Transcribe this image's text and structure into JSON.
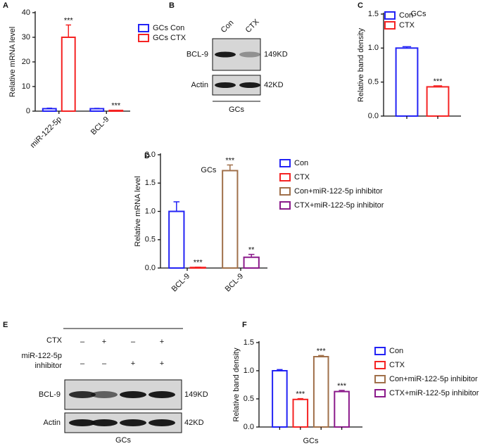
{
  "chart_data": [
    {
      "type": "bar",
      "panel": "A",
      "ylabel": "Relative mRNA level",
      "categories": [
        "miR-122-5p",
        "BCL-9"
      ],
      "series": [
        {
          "name": "GCs Con",
          "color": "#2323f5",
          "values": [
            1,
            1
          ],
          "errors": [
            0.2,
            0.15
          ]
        },
        {
          "name": "GCs CTX",
          "color": "#f52323",
          "values": [
            30,
            0.3
          ],
          "errors": [
            5,
            0.05
          ],
          "significance": [
            "***",
            "***"
          ]
        }
      ],
      "ylim": [
        0,
        40
      ],
      "yticks": [
        0,
        10,
        20,
        30,
        40
      ],
      "legend": "upper right"
    },
    {
      "type": "bar",
      "panel": "C",
      "title": "GCs",
      "ylabel": "Relative band density",
      "categories": [
        null
      ],
      "series": [
        {
          "name": "Con",
          "color": "#2323f5",
          "values": [
            1.0
          ],
          "errors": [
            0.02
          ]
        },
        {
          "name": "CTX",
          "color": "#f52323",
          "values": [
            0.43
          ],
          "errors": [
            0.015
          ],
          "significance": [
            "***"
          ]
        }
      ],
      "ylim": [
        0,
        1.5
      ],
      "yticks": [
        {
          "value": 0,
          "label": "0.0"
        },
        0.5,
        {
          "value": 1,
          "label": "1.0"
        },
        1.5
      ],
      "legend": "upper left"
    },
    {
      "type": "bar",
      "panel": "D",
      "title": "GCs",
      "ylabel": "Relative mRNA level",
      "categories": [
        "BCL-9",
        "BCL-9"
      ],
      "series": [
        {
          "name": "Con",
          "color": "#2323f5",
          "values": [
            1.0,
            null
          ],
          "errors": [
            0.17,
            null
          ]
        },
        {
          "name": "CTX",
          "color": "#f52323",
          "values": [
            0.01,
            null
          ],
          "errors": [
            0.005,
            null
          ],
          "significance": [
            "***",
            null
          ]
        },
        {
          "name": "Con+miR-122-5p inhibitor",
          "color": "#a0704a",
          "values": [
            null,
            1.72
          ],
          "errors": [
            null,
            0.1
          ],
          "significance": [
            null,
            "***"
          ]
        },
        {
          "name": "CTX+miR-122-5p inhibitor",
          "color": "#8b1a8b",
          "values": [
            null,
            0.19
          ],
          "errors": [
            null,
            0.05
          ],
          "significance": [
            null,
            "**"
          ]
        }
      ],
      "ylim": [
        0,
        2
      ],
      "yticks": [
        {
          "value": 0,
          "label": "0.0"
        },
        0.5,
        {
          "value": 1,
          "label": "1.0"
        },
        1.5,
        {
          "value": 2,
          "label": "2.0"
        }
      ],
      "legend": "right"
    },
    {
      "type": "bar",
      "panel": "F",
      "ylabel": "Relative band density",
      "xlabel": "GCs",
      "categories": [
        null
      ],
      "series": [
        {
          "name": "Con",
          "color": "#2323f5",
          "values": [
            1.0
          ],
          "errors": [
            0.02
          ]
        },
        {
          "name": "CTX",
          "color": "#f52323",
          "values": [
            0.49
          ],
          "errors": [
            0.015
          ],
          "significance": [
            "***"
          ]
        },
        {
          "name": "Con+miR-122-5p inhibitor",
          "color": "#a0704a",
          "values": [
            1.25
          ],
          "errors": [
            0.02
          ],
          "significance": [
            "***"
          ]
        },
        {
          "name": "CTX+miR-122-5p inhibitor",
          "color": "#8b1a8b",
          "values": [
            0.63
          ],
          "errors": [
            0.02
          ],
          "significance": [
            "***"
          ]
        }
      ],
      "ylim": [
        0,
        1.5
      ],
      "yticks": [
        {
          "value": 0,
          "label": "0.0"
        },
        0.5,
        {
          "value": 1,
          "label": "1.0"
        },
        1.5
      ],
      "legend": "right"
    }
  ],
  "blots": [
    {
      "panel": "B",
      "lanes": [
        "Con",
        "CTX"
      ],
      "rows": [
        {
          "label": "BCL-9",
          "size": "149KD"
        },
        {
          "label": "Actin",
          "size": "42KD"
        }
      ],
      "group": "GCs"
    },
    {
      "panel": "E",
      "conditions": [
        {
          "label": [
            "CTX"
          ],
          "signs": [
            "–",
            "+",
            "–",
            "+"
          ]
        },
        {
          "label": [
            "miR-122-5p",
            "inhibitor"
          ],
          "signs": [
            "–",
            "–",
            "+",
            "+"
          ]
        }
      ],
      "rows": [
        {
          "label": "BCL-9",
          "size": "149KD"
        },
        {
          "label": "Actin",
          "size": "42KD"
        }
      ],
      "group": "GCs"
    }
  ]
}
